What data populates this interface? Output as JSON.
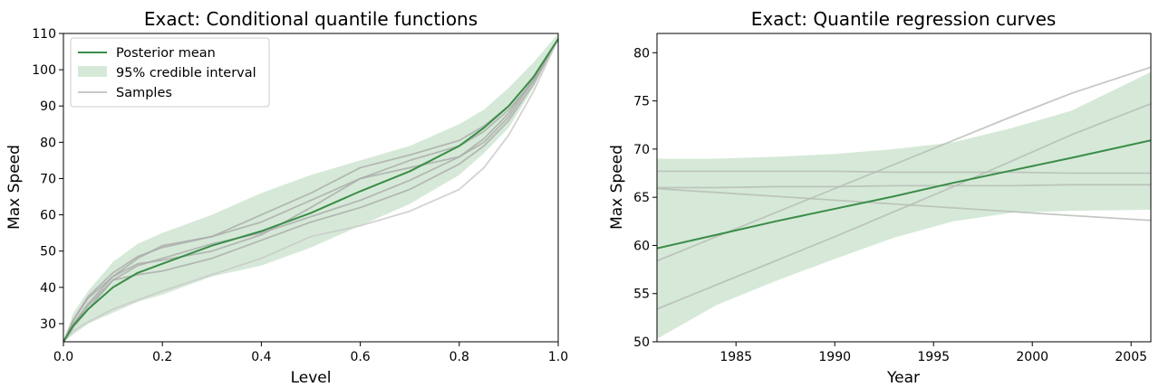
{
  "chart_data": [
    {
      "type": "line",
      "title": "Exact: Conditional quantile functions",
      "xlabel": "Level",
      "ylabel": "Max Speed",
      "xlim": [
        0.0,
        1.0
      ],
      "ylim": [
        25,
        110
      ],
      "xticks": [
        0.0,
        0.2,
        0.4,
        0.6,
        0.8,
        1.0
      ],
      "xtick_labels": [
        "0.0",
        "0.2",
        "0.4",
        "0.6",
        "0.8",
        "1.0"
      ],
      "yticks": [
        30,
        40,
        50,
        60,
        70,
        80,
        90,
        100,
        110
      ],
      "ytick_labels": [
        "30",
        "40",
        "50",
        "60",
        "70",
        "80",
        "90",
        "100",
        "110"
      ],
      "legend": {
        "placement": "upper-left",
        "entries": [
          {
            "label": "Posterior mean",
            "kind": "line",
            "color": "#3a8c47"
          },
          {
            "label": "95% credible interval",
            "kind": "band",
            "color": "#d6e9d8"
          },
          {
            "label": "Samples",
            "kind": "line",
            "color": "#c8c8c8"
          }
        ]
      },
      "x": [
        0.0,
        0.02,
        0.05,
        0.1,
        0.15,
        0.2,
        0.3,
        0.4,
        0.5,
        0.6,
        0.7,
        0.8,
        0.85,
        0.9,
        0.95,
        1.0
      ],
      "band": {
        "lower": [
          25,
          27,
          30,
          33,
          36,
          38,
          43,
          46,
          51,
          57,
          63,
          71,
          77,
          84,
          95,
          108
        ],
        "upper": [
          25,
          33,
          39,
          47,
          52,
          55,
          60,
          66,
          71,
          75,
          79,
          85,
          89,
          95,
          102,
          110
        ]
      },
      "series": [
        {
          "role": "mean",
          "color": "#3a8c47",
          "values": [
            25,
            29.5,
            34,
            40,
            44,
            46.5,
            51.5,
            55.5,
            60.5,
            66.5,
            72,
            79,
            84,
            90,
            98,
            108.5
          ]
        },
        {
          "role": "sample",
          "color": "#aaaaaa",
          "values": [
            25,
            31,
            37.5,
            44,
            48.5,
            51,
            54,
            58,
            64,
            70,
            73,
            76,
            80,
            87,
            97,
            108.5
          ]
        },
        {
          "role": "sample",
          "color": "#aaaaaa",
          "values": [
            25,
            30,
            35.5,
            43,
            46.5,
            47.5,
            50,
            54.5,
            62,
            70,
            75,
            79,
            83,
            89,
            97,
            108.5
          ]
        },
        {
          "role": "sample",
          "color": "#aaaaaa",
          "values": [
            25,
            29,
            34,
            42,
            43.5,
            44.5,
            48,
            53,
            58,
            62,
            67,
            74,
            79,
            86,
            96,
            108.5
          ]
        },
        {
          "role": "sample",
          "color": "#aaaaaa",
          "values": [
            25,
            31,
            37,
            43,
            48,
            51.5,
            54,
            60,
            66,
            73,
            76.5,
            80.5,
            84.5,
            90,
            98,
            108.5
          ]
        },
        {
          "role": "sample",
          "color": "#aaaaaa",
          "values": [
            25,
            29.5,
            35,
            42,
            46,
            48,
            52,
            55,
            59.5,
            64,
            69.5,
            76,
            81,
            88,
            97.5,
            108.5
          ]
        },
        {
          "role": "sample",
          "color": "#c8c8c8",
          "values": [
            25,
            28,
            30.5,
            34,
            36.5,
            39,
            43.5,
            48,
            54,
            57,
            61,
            67,
            73,
            82,
            94,
            108.5
          ]
        }
      ]
    },
    {
      "type": "line",
      "title": "Exact: Quantile regression curves",
      "xlabel": "Year",
      "ylabel": "Max Speed",
      "xlim": [
        1981,
        2006
      ],
      "ylim": [
        50,
        82
      ],
      "xticks": [
        1985,
        1990,
        1995,
        2000,
        2005
      ],
      "xtick_labels": [
        "1985",
        "1990",
        "1995",
        "2000",
        "2005"
      ],
      "yticks": [
        50,
        55,
        60,
        65,
        70,
        75,
        80
      ],
      "ytick_labels": [
        "50",
        "55",
        "60",
        "65",
        "70",
        "75",
        "80"
      ],
      "x": [
        1981,
        1984,
        1987,
        1990,
        1993,
        1996,
        1999,
        2002,
        2006
      ],
      "band": {
        "lower": [
          50.3,
          53.8,
          56.3,
          58.6,
          60.8,
          62.5,
          63.4,
          63.6,
          63.7
        ],
        "upper": [
          69.0,
          69.0,
          69.2,
          69.5,
          70.0,
          70.7,
          72.2,
          74.0,
          78.0
        ]
      },
      "series": [
        {
          "role": "mean",
          "color": "#3a8c47",
          "values": [
            59.7,
            61.1,
            62.5,
            63.8,
            65.1,
            66.5,
            67.8,
            69.1,
            70.9
          ]
        },
        {
          "role": "sample",
          "color": "#b5bcb5",
          "values": [
            58.4,
            60.9,
            63.4,
            65.9,
            68.4,
            70.9,
            73.4,
            75.8,
            78.5
          ]
        },
        {
          "role": "sample",
          "color": "#b5bcb5",
          "values": [
            53.4,
            55.9,
            58.4,
            60.9,
            63.5,
            66.1,
            68.8,
            71.5,
            74.7
          ]
        },
        {
          "role": "sample",
          "color": "#b5bcb5",
          "values": [
            67.7,
            67.7,
            67.7,
            67.7,
            67.6,
            67.6,
            67.6,
            67.5,
            67.5
          ]
        },
        {
          "role": "sample",
          "color": "#b5bcb5",
          "values": [
            66.0,
            66.0,
            66.1,
            66.1,
            66.2,
            66.2,
            66.2,
            66.3,
            66.3
          ]
        },
        {
          "role": "sample",
          "color": "#b5bcb5",
          "values": [
            65.9,
            65.5,
            65.1,
            64.7,
            64.3,
            63.9,
            63.5,
            63.1,
            62.6
          ]
        }
      ]
    }
  ]
}
